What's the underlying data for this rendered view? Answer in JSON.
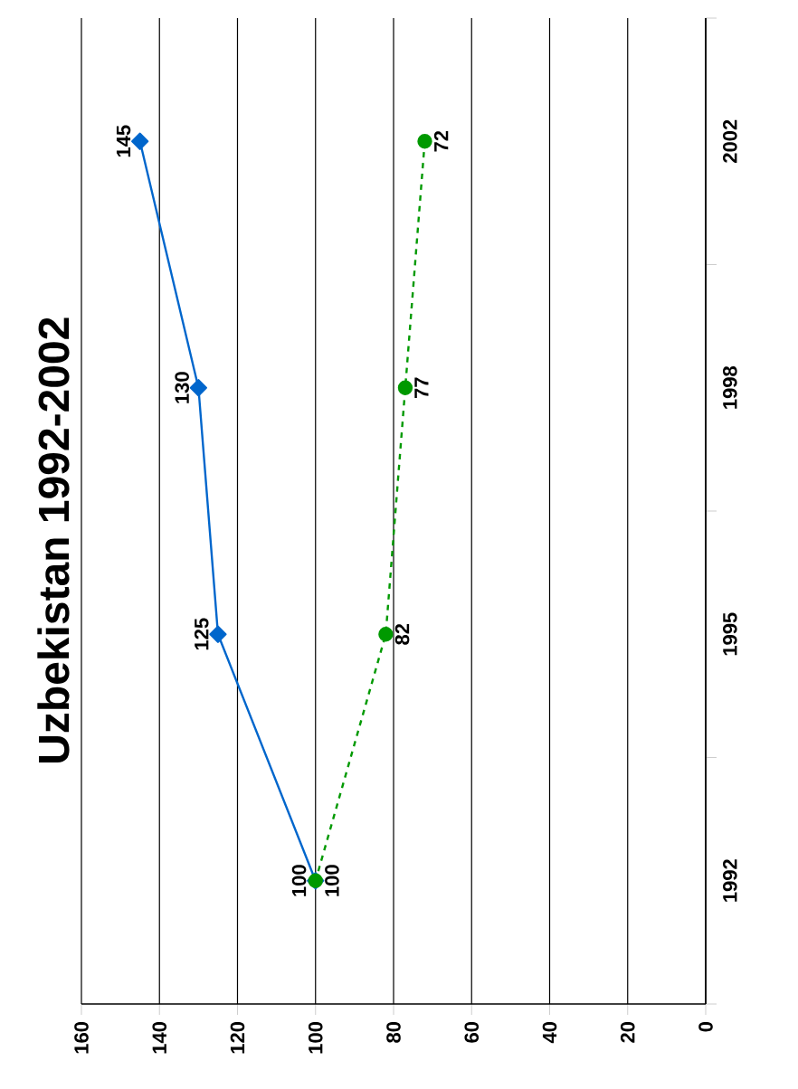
{
  "chart_data": {
    "type": "line",
    "title": "Uzbekistan 1992-2002",
    "orientation": "horizontal",
    "categories": [
      "2002",
      "1998",
      "1995",
      "1992"
    ],
    "series": [
      {
        "color": "#0066cc",
        "values": [
          145,
          130,
          125,
          100
        ],
        "marker": "diamond",
        "line_style": "solid"
      },
      {
        "color": "#009900",
        "values": [
          72,
          77,
          82,
          100
        ],
        "marker": "circle",
        "line_style": "dashed"
      }
    ],
    "xlim": [
      160,
      0
    ],
    "xticks": [
      160,
      140,
      120,
      100,
      80,
      60,
      40,
      20,
      0
    ],
    "grid": "x",
    "data_labels": true
  }
}
